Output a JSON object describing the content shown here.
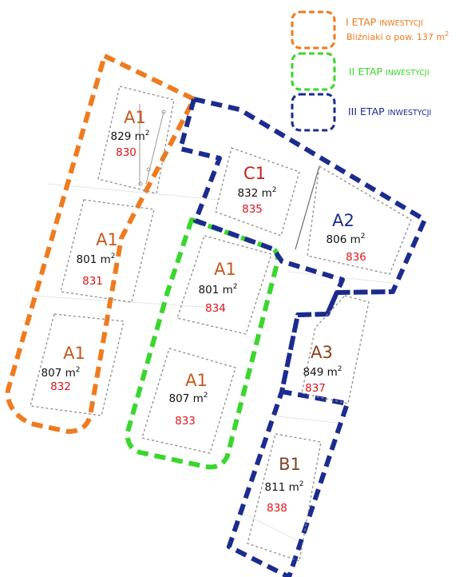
{
  "colors": {
    "stage1": "#f07a1e",
    "stage2": "#3ad62e",
    "stage3": "#1c2b8e",
    "plot_number": "#e0141b",
    "type_a1": "#c8571c",
    "type_c1": "#c81e1e",
    "type_a2": "#1c2b8e",
    "type_a3": "#8a4218",
    "type_b1": "#7b4526"
  },
  "legend": {
    "stage1": {
      "title": "I ETAP",
      "title_small": "INWESTYCJI",
      "subtitle": "Bliźniaki o pow. 137 m",
      "subtitle_sup": "2"
    },
    "stage2": {
      "title": "II ETAP",
      "title_small": "INWESTYCJI"
    },
    "stage3": {
      "title": "III ETAP",
      "title_small": "INWESTYCJI"
    }
  },
  "plots": [
    {
      "id": "830",
      "type": "A1",
      "area": "829 m",
      "area_sup": "2",
      "number": "830",
      "stage": "I"
    },
    {
      "id": "831",
      "type": "A1",
      "area": "801 m",
      "area_sup": "2",
      "number": "831",
      "stage": "I"
    },
    {
      "id": "832",
      "type": "A1",
      "area": "807 m",
      "area_sup": "2",
      "number": "832",
      "stage": "I"
    },
    {
      "id": "834",
      "type": "A1",
      "area": "801 m",
      "area_sup": "2",
      "number": "834",
      "stage": "II"
    },
    {
      "id": "833",
      "type": "A1",
      "area": "807 m",
      "area_sup": "2",
      "number": "833",
      "stage": "II"
    },
    {
      "id": "835",
      "type": "C1",
      "area": "832 m",
      "area_sup": "2",
      "number": "835",
      "stage": "III"
    },
    {
      "id": "836",
      "type": "A2",
      "area": "806 m",
      "area_sup": "2",
      "number": "836",
      "stage": "III"
    },
    {
      "id": "837",
      "type": "A3",
      "area": "849 m",
      "area_sup": "2",
      "number": "837",
      "stage": "III"
    },
    {
      "id": "838",
      "type": "B1",
      "area": "811 m",
      "area_sup": "2",
      "number": "838",
      "stage": "III"
    }
  ]
}
